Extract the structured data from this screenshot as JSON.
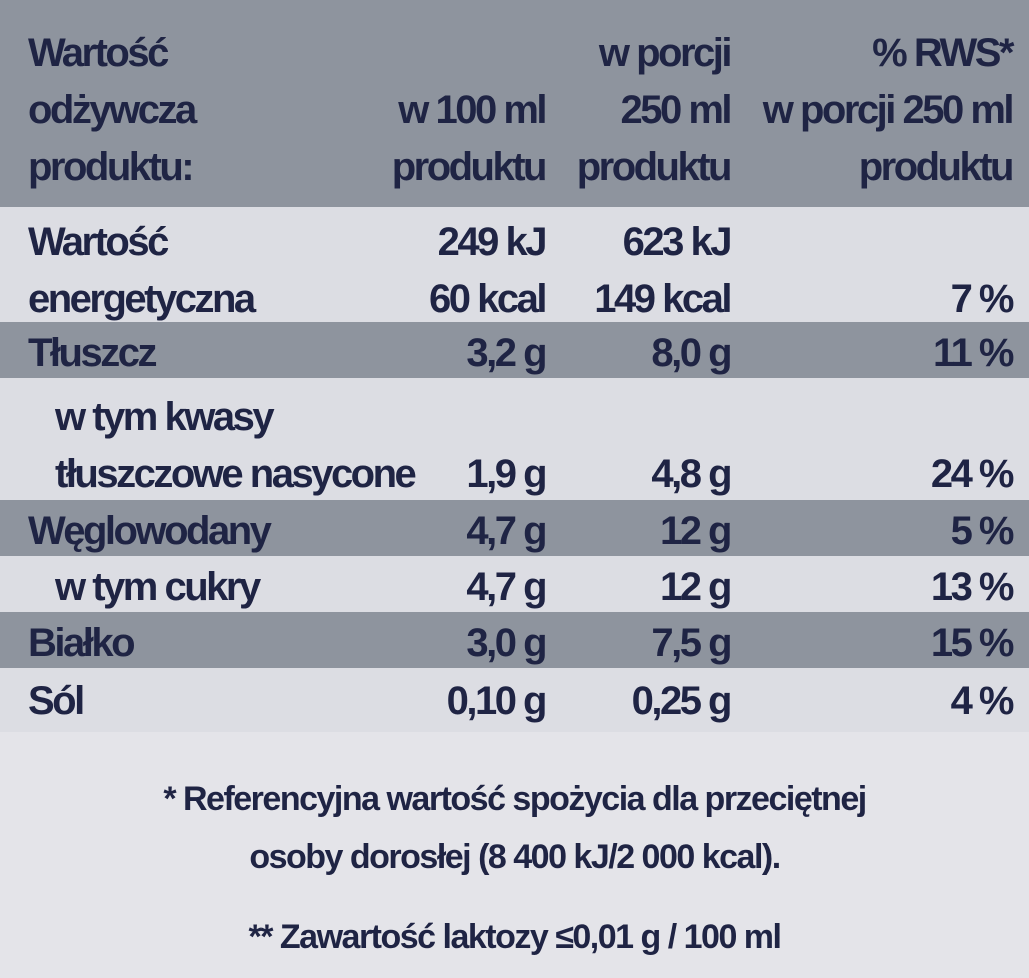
{
  "header": {
    "label": [
      "Wartość",
      "odżywcza",
      "produktu:"
    ],
    "col1": [
      "w 100 ml",
      "produktu"
    ],
    "col2": [
      "w porcji",
      "250 ml",
      "produktu"
    ],
    "col3": [
      "% RWS*",
      "w porcji 250 ml",
      "produktu"
    ]
  },
  "rows": [
    {
      "label": [
        "Wartość",
        "energetyczna"
      ],
      "per100": [
        "249 kJ",
        "60 kcal"
      ],
      "portion": [
        "623 kJ",
        "149 kcal"
      ],
      "rws": "7 %"
    },
    {
      "label": "Tłuszcz",
      "per100": "3,2 g",
      "portion": "8,0 g",
      "rws": "11 %"
    },
    {
      "label": [
        "w tym kwasy",
        "tłuszczowe nasycone"
      ],
      "per100": "1,9 g",
      "portion": "4,8 g",
      "rws": "24 %"
    },
    {
      "label": "Węglowodany",
      "per100": "4,7 g",
      "portion": "12 g",
      "rws": "5 %"
    },
    {
      "label": "w tym cukry",
      "per100": "4,7 g",
      "portion": "12 g",
      "rws": "13 %"
    },
    {
      "label": "Białko",
      "per100": "3,0 g",
      "portion": "7,5 g",
      "rws": "15 %"
    },
    {
      "label": "Sól",
      "per100": "0,10 g",
      "portion": "0,25 g",
      "rws": "4 %"
    }
  ],
  "footnotes": [
    "* Referencyjna wartość spożycia dla przeciętnej",
    "osoby dorosłej (8 400 kJ/2 000 kcal).",
    "** Zawartość laktozy ≤0,01 g / 100 ml"
  ],
  "colors": {
    "text": "#1f2444",
    "band_dark": "#8e949e",
    "band_light": "#dcdde3"
  }
}
